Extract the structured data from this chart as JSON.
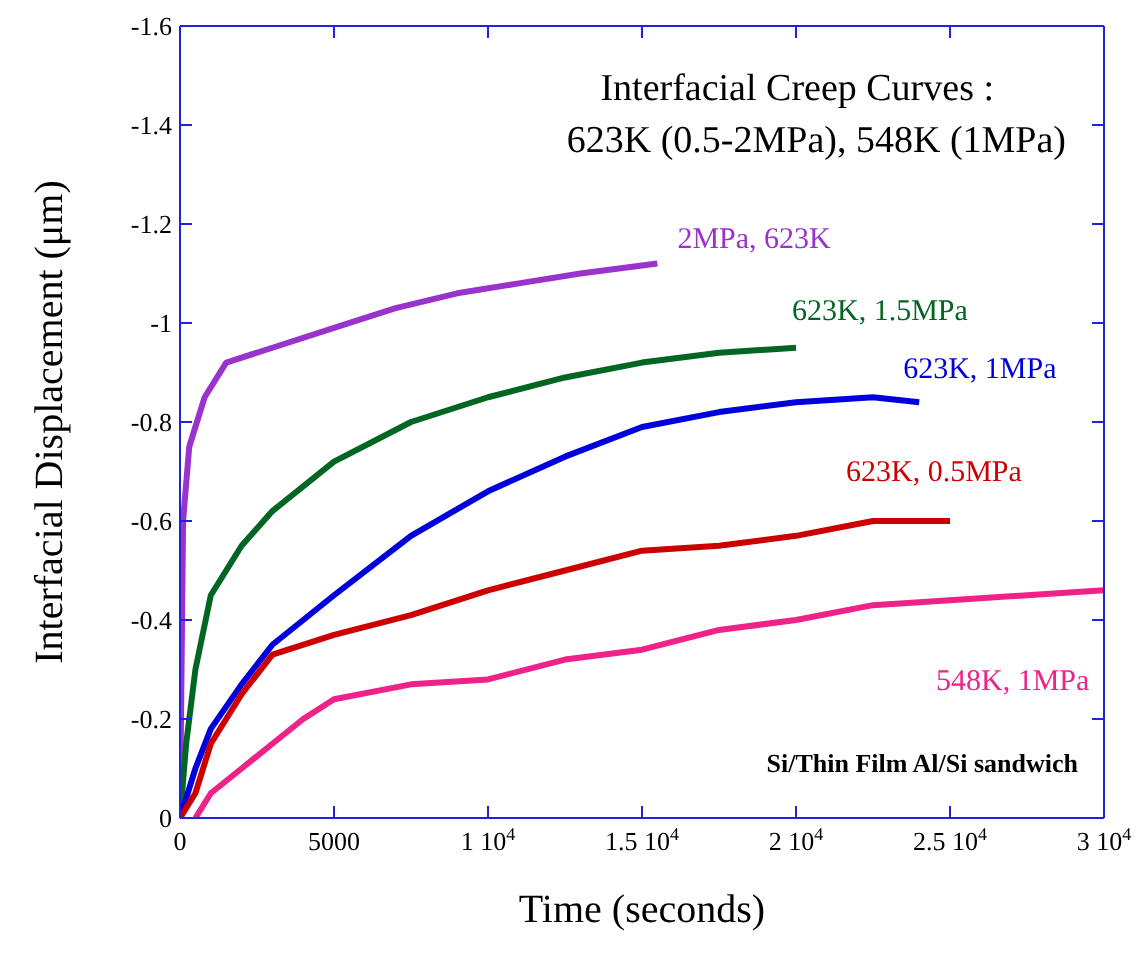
{
  "chart_data": {
    "type": "line",
    "title": "Interfacial Creep Curves :",
    "subtitle": "623K (0.5-2MPa), 548K (1MPa)",
    "xlabel": "Time (seconds)",
    "ylabel": "Interfacial Displacement (μm)",
    "annotations": [
      "Si/Thin Film Al/Si sandwich"
    ],
    "xlim": [
      0,
      30000
    ],
    "xticks": [
      0,
      5000,
      {
        "value": 10000,
        "label": "1 10$^{4}$"
      },
      {
        "value": 15000,
        "label": "1.5 10$^{4}$"
      },
      {
        "value": 20000,
        "label": "2 10$^{4}$"
      },
      {
        "value": 25000,
        "label": "2.5 10$^{4}$"
      },
      {
        "value": 30000,
        "label": "3 10$^{4}$"
      }
    ],
    "ylim": [
      0,
      -1.6
    ],
    "yticks": [
      0,
      -0.2,
      -0.4,
      -0.6,
      -0.8,
      -1,
      -1.2,
      -1.4,
      -1.6
    ],
    "marker": "none",
    "line_style": "solid",
    "series": [
      {
        "name": "2MPa, 623K",
        "color": "#9933cc",
        "x": [
          0,
          100,
          300,
          800,
          1500,
          3000,
          5000,
          7000,
          9000,
          11000,
          13000,
          15500
        ],
        "values": [
          0,
          -0.6,
          -0.75,
          -0.85,
          -0.92,
          -0.95,
          -0.99,
          -1.03,
          -1.06,
          -1.08,
          -1.1,
          -1.12
        ]
      },
      {
        "name": "623K, 1.5MPa",
        "color": "#006622",
        "x": [
          0,
          200,
          500,
          1000,
          2000,
          3000,
          5000,
          7500,
          10000,
          12500,
          15000,
          17500,
          20000
        ],
        "values": [
          0,
          -0.15,
          -0.3,
          -0.45,
          -0.55,
          -0.62,
          -0.72,
          -0.8,
          -0.85,
          -0.89,
          -0.92,
          -0.94,
          -0.95
        ]
      },
      {
        "name": "623K, 1MPa",
        "color": "#0000dd",
        "x": [
          0,
          500,
          1000,
          2000,
          3000,
          5000,
          7500,
          10000,
          12500,
          15000,
          17500,
          20000,
          22500,
          24000
        ],
        "values": [
          0,
          -0.1,
          -0.18,
          -0.27,
          -0.35,
          -0.45,
          -0.57,
          -0.66,
          -0.73,
          -0.79,
          -0.82,
          -0.84,
          -0.85,
          -0.84
        ]
      },
      {
        "name": "623K, 0.5MPa",
        "color": "#cc0000",
        "x": [
          0,
          500,
          1000,
          2000,
          3000,
          5000,
          7500,
          10000,
          12500,
          15000,
          17500,
          20000,
          22500,
          25000
        ],
        "values": [
          0,
          -0.05,
          -0.15,
          -0.25,
          -0.33,
          -0.37,
          -0.41,
          -0.46,
          -0.5,
          -0.54,
          -0.55,
          -0.57,
          -0.6,
          -0.6
        ]
      },
      {
        "name": "548K, 1MPa",
        "color": "#ee2288",
        "x": [
          500,
          1000,
          2000,
          3000,
          4000,
          5000,
          7500,
          10000,
          12500,
          15000,
          17500,
          20000,
          22500,
          25000,
          27500,
          30000
        ],
        "values": [
          0,
          -0.05,
          -0.1,
          -0.15,
          -0.2,
          -0.24,
          -0.27,
          -0.28,
          -0.32,
          -0.34,
          -0.38,
          -0.4,
          -0.43,
          -0.44,
          -0.45,
          -0.46
        ]
      }
    ]
  }
}
